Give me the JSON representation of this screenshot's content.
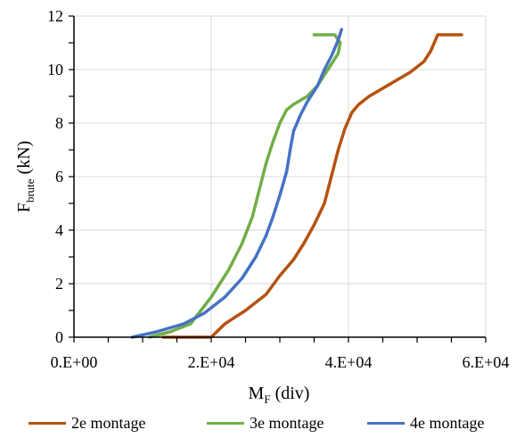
{
  "chart_data": {
    "type": "line",
    "xlabel": "M",
    "xlabel_sub": "F",
    "xlabel_unit": " (div)",
    "ylabel": "F",
    "ylabel_sub": "brute",
    "ylabel_unit": " (kN)",
    "xlim": [
      0,
      60000
    ],
    "ylim": [
      0,
      12
    ],
    "x_ticks": [
      {
        "value": 0,
        "label": "0.E+00"
      },
      {
        "value": 20000,
        "label": "2.E+04"
      },
      {
        "value": 40000,
        "label": "4.E+04"
      },
      {
        "value": 60000,
        "label": "6.E+04"
      }
    ],
    "y_ticks": [
      {
        "value": 0,
        "label": "0"
      },
      {
        "value": 2,
        "label": "2"
      },
      {
        "value": 4,
        "label": "4"
      },
      {
        "value": 6,
        "label": "6"
      },
      {
        "value": 8,
        "label": "8"
      },
      {
        "value": 10,
        "label": "10"
      },
      {
        "value": 12,
        "label": "12"
      }
    ],
    "grid": true,
    "legend_position": "bottom",
    "series": [
      {
        "name": "2e montage",
        "color": "#b5520f",
        "x": [
          13000,
          20000,
          22000,
          25000,
          28000,
          30000,
          32000,
          33500,
          35000,
          36500,
          37500,
          38500,
          39500,
          40500,
          41500,
          43000,
          45000,
          47000,
          49000,
          51000,
          52000,
          52500,
          53000,
          56500
        ],
        "y": [
          0,
          0,
          0.5,
          1.0,
          1.6,
          2.3,
          2.9,
          3.5,
          4.2,
          5.0,
          6.0,
          7.0,
          7.8,
          8.4,
          8.7,
          9.0,
          9.3,
          9.6,
          9.9,
          10.3,
          10.7,
          11.0,
          11.3,
          11.3
        ]
      },
      {
        "name": "3e montage",
        "color": "#71ad47",
        "x": [
          11000,
          14000,
          17000,
          20000,
          22500,
          24500,
          26000,
          27000,
          28000,
          29000,
          30000,
          31000,
          32000,
          34000,
          35500,
          36500,
          37500,
          38500,
          38800,
          38000,
          35000
        ],
        "y": [
          0,
          0.2,
          0.5,
          1.5,
          2.5,
          3.5,
          4.5,
          5.5,
          6.5,
          7.3,
          8.0,
          8.5,
          8.7,
          9.0,
          9.4,
          9.8,
          10.2,
          10.6,
          11.0,
          11.3,
          11.3
        ]
      },
      {
        "name": "4e montage",
        "color": "#4572c4",
        "x": [
          8500,
          12000,
          16000,
          19000,
          22000,
          24500,
          26500,
          28000,
          29000,
          30000,
          31000,
          31500,
          32000,
          33000,
          34000,
          35500,
          36500,
          37500,
          38500,
          39000
        ],
        "y": [
          0,
          0.2,
          0.5,
          0.9,
          1.5,
          2.2,
          3.0,
          3.8,
          4.5,
          5.3,
          6.2,
          7.0,
          7.7,
          8.3,
          8.8,
          9.4,
          10.0,
          10.5,
          11.1,
          11.5
        ]
      }
    ]
  }
}
